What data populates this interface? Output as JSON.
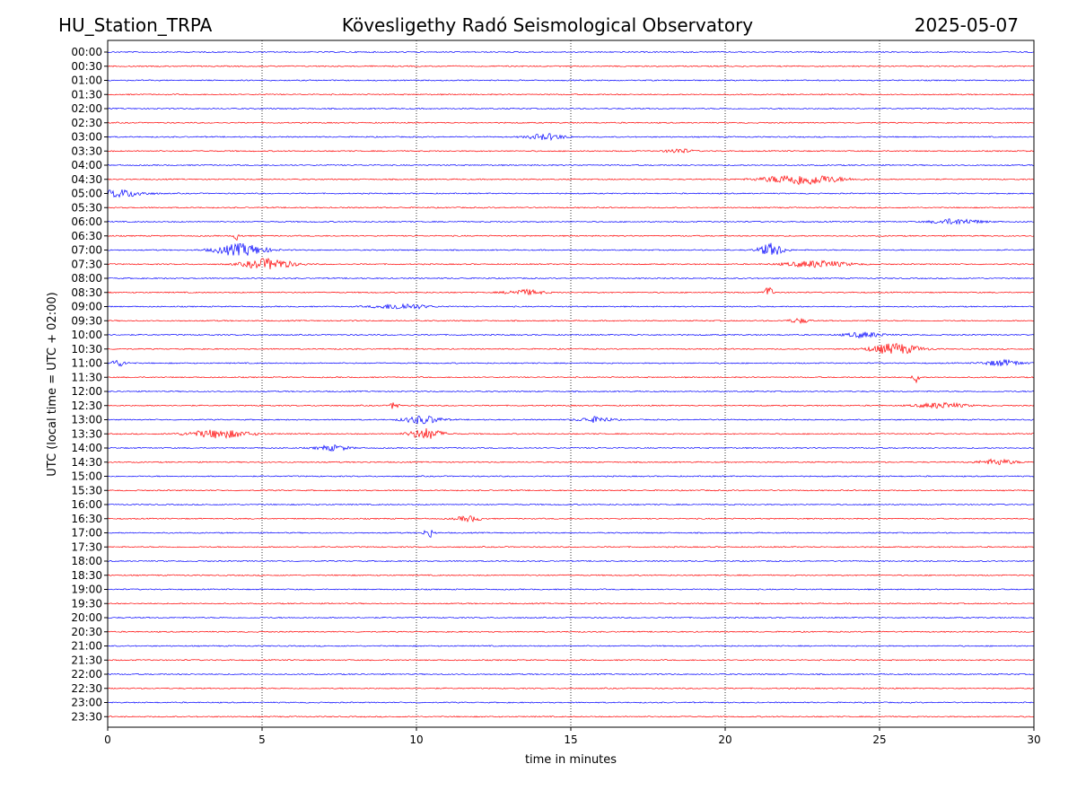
{
  "header": {
    "station": "HU_Station_TRPA",
    "observatory": "Kövesligethy Radó Seismological Observatory",
    "date": "2025-05-07"
  },
  "chart_data": {
    "type": "line",
    "title": "Kövesligethy Radó Seismological Observatory",
    "xlabel": "time in minutes",
    "ylabel": "UTC (local time = UTC + 02:00)",
    "xlim": [
      0,
      30
    ],
    "x_ticks": [
      0,
      5,
      10,
      15,
      20,
      25,
      30
    ],
    "grid": "vertical dotted lines at x = 5, 10, 15, 20, 25",
    "row_labels": [
      "00:00",
      "00:30",
      "01:00",
      "01:30",
      "02:00",
      "02:30",
      "03:00",
      "03:30",
      "04:00",
      "04:30",
      "05:00",
      "05:30",
      "06:00",
      "06:30",
      "07:00",
      "07:30",
      "08:00",
      "08:30",
      "09:00",
      "09:30",
      "10:00",
      "10:30",
      "11:00",
      "11:30",
      "12:00",
      "12:30",
      "13:00",
      "13:30",
      "14:00",
      "14:30",
      "15:00",
      "15:30",
      "16:00",
      "16:30",
      "17:00",
      "17:30",
      "18:00",
      "18:30",
      "19:00",
      "19:30",
      "20:00",
      "20:30",
      "21:00",
      "21:30",
      "22:00",
      "22:30",
      "23:00",
      "23:30"
    ],
    "series_colors": [
      "#0000ff",
      "#ff0000"
    ],
    "color_rule": "rows alternate blue (on the hour) and red (half hour)",
    "events": [
      {
        "row": "03:00",
        "x": 14.2,
        "duration": 1.5,
        "amplitude": 0.45
      },
      {
        "row": "03:30",
        "x": 18.5,
        "duration": 1.0,
        "amplitude": 0.35
      },
      {
        "row": "04:30",
        "x": 22.5,
        "duration": 3.0,
        "amplitude": 0.8
      },
      {
        "row": "05:00",
        "x": 0.4,
        "duration": 2.0,
        "amplitude": 0.55
      },
      {
        "row": "06:00",
        "x": 27.5,
        "duration": 2.0,
        "amplitude": 0.4
      },
      {
        "row": "06:30",
        "x": 4.2,
        "duration": 0.3,
        "amplitude": 0.6
      },
      {
        "row": "07:00",
        "x": 4.3,
        "duration": 2.0,
        "amplitude": 0.9
      },
      {
        "row": "07:00",
        "x": 21.5,
        "duration": 1.0,
        "amplitude": 0.95
      },
      {
        "row": "07:30",
        "x": 5.2,
        "duration": 2.0,
        "amplitude": 0.8
      },
      {
        "row": "07:30",
        "x": 23.0,
        "duration": 2.5,
        "amplitude": 0.5
      },
      {
        "row": "08:30",
        "x": 13.5,
        "duration": 1.5,
        "amplitude": 0.4
      },
      {
        "row": "08:30",
        "x": 21.4,
        "duration": 0.3,
        "amplitude": 1.0
      },
      {
        "row": "09:00",
        "x": 9.5,
        "duration": 2.0,
        "amplitude": 0.45
      },
      {
        "row": "09:30",
        "x": 22.4,
        "duration": 0.8,
        "amplitude": 0.35
      },
      {
        "row": "10:00",
        "x": 24.5,
        "duration": 1.5,
        "amplitude": 0.4
      },
      {
        "row": "10:30",
        "x": 25.5,
        "duration": 2.0,
        "amplitude": 0.8
      },
      {
        "row": "11:00",
        "x": 0.3,
        "duration": 0.8,
        "amplitude": 0.45
      },
      {
        "row": "11:00",
        "x": 29.0,
        "duration": 1.5,
        "amplitude": 0.45
      },
      {
        "row": "11:30",
        "x": 26.2,
        "duration": 0.3,
        "amplitude": 0.8
      },
      {
        "row": "12:30",
        "x": 9.3,
        "duration": 0.3,
        "amplitude": 0.8
      },
      {
        "row": "12:30",
        "x": 27.0,
        "duration": 2.0,
        "amplitude": 0.4
      },
      {
        "row": "13:00",
        "x": 10.2,
        "duration": 1.5,
        "amplitude": 0.6
      },
      {
        "row": "13:00",
        "x": 15.8,
        "duration": 1.3,
        "amplitude": 0.4
      },
      {
        "row": "13:30",
        "x": 3.6,
        "duration": 2.5,
        "amplitude": 0.6
      },
      {
        "row": "13:30",
        "x": 10.3,
        "duration": 1.3,
        "amplitude": 0.8
      },
      {
        "row": "14:00",
        "x": 7.3,
        "duration": 1.3,
        "amplitude": 0.4
      },
      {
        "row": "14:30",
        "x": 28.8,
        "duration": 1.5,
        "amplitude": 0.4
      },
      {
        "row": "16:30",
        "x": 11.7,
        "duration": 1.0,
        "amplitude": 0.4
      },
      {
        "row": "17:00",
        "x": 10.4,
        "duration": 0.4,
        "amplitude": 0.7
      }
    ]
  }
}
